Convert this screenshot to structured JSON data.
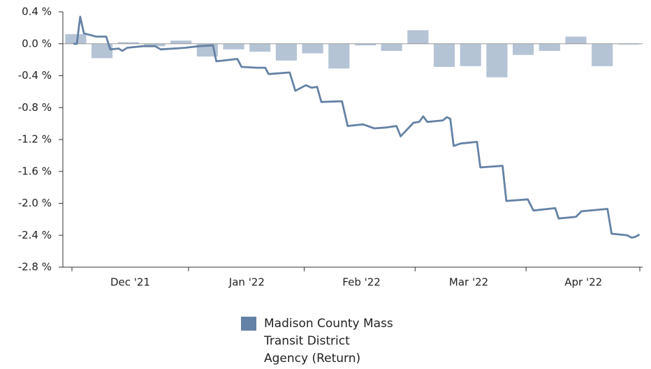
{
  "chart_data": {
    "type": "combo",
    "xlim": [
      0,
      151
    ],
    "xticks": [
      {
        "value": 15.5,
        "label": "Dec '21"
      },
      {
        "value": 46.5,
        "label": "Jan '22"
      },
      {
        "value": 77,
        "label": "Feb '22"
      },
      {
        "value": 105.5,
        "label": "Mar '22"
      },
      {
        "value": 136,
        "label": "Apr '22"
      }
    ],
    "ylim": [
      -2.8,
      0.4
    ],
    "yticks": [
      {
        "value": 0.4,
        "label": "0.4 %"
      },
      {
        "value": 0.0,
        "label": "0.0 %"
      },
      {
        "value": -0.4,
        "label": "-0.4 %"
      },
      {
        "value": -0.8,
        "label": "-0.8 %"
      },
      {
        "value": -1.2,
        "label": "-1.2 %"
      },
      {
        "value": -1.6,
        "label": "-1.6 %"
      },
      {
        "value": -2.0,
        "label": "-2.0 %"
      },
      {
        "value": -2.4,
        "label": "-2.4 %"
      },
      {
        "value": -2.8,
        "label": "-2.8 %"
      }
    ],
    "series": [
      {
        "type": "bar",
        "color": "#b4c4d5",
        "x": [
          1,
          8,
          15,
          22,
          29,
          36,
          43,
          50,
          57,
          64,
          71,
          78,
          85,
          92,
          99,
          106,
          113,
          120,
          127,
          134,
          141,
          148
        ],
        "values": [
          0.12,
          -0.18,
          0.02,
          -0.03,
          0.04,
          -0.16,
          -0.07,
          -0.1,
          -0.21,
          -0.12,
          -0.31,
          -0.02,
          -0.09,
          0.17,
          -0.29,
          -0.28,
          -0.42,
          -0.14,
          -0.09,
          0.09,
          -0.28,
          -0.01
        ]
      },
      {
        "type": "line",
        "name": "Madison County Mass Transit District Agency (Return)",
        "color": "#6482a5",
        "x": [
          0.4,
          1.3,
          2.2,
          3.2,
          6.5,
          9.1,
          10.2,
          12.4,
          13.4,
          14.7,
          18.9,
          22.1,
          23.6,
          30.1,
          33.8,
          37.5,
          38.4,
          44.0,
          45.1,
          49.2,
          51.4,
          52.3,
          57.9,
          59.4,
          62.2,
          63.7,
          65.2,
          66.3,
          71.8,
          73.3,
          77.4,
          80.4,
          83.5,
          86.3,
          87.4,
          90.8,
          92.3,
          93.4,
          94.5,
          98.6,
          99.7,
          100.6,
          101.5,
          103.4,
          107.7,
          108.6,
          114.5,
          115.5,
          121.2,
          122.7,
          128.5,
          129.4,
          134.0,
          135.5,
          142.4,
          143.5,
          147.6,
          148.9,
          149.8,
          150.9
        ],
        "values": [
          0,
          0,
          0.34,
          0.13,
          0.09,
          0.09,
          -0.07,
          -0.06,
          -0.09,
          -0.05,
          -0.03,
          -0.03,
          -0.07,
          -0.05,
          -0.03,
          -0.02,
          -0.22,
          -0.19,
          -0.29,
          -0.3,
          -0.3,
          -0.38,
          -0.36,
          -0.59,
          -0.52,
          -0.55,
          -0.54,
          -0.73,
          -0.72,
          -1.03,
          -1.01,
          -1.06,
          -1.05,
          -1.03,
          -1.16,
          -0.99,
          -0.98,
          -0.91,
          -0.98,
          -0.96,
          -0.92,
          -0.94,
          -1.28,
          -1.25,
          -1.23,
          -1.55,
          -1.53,
          -1.97,
          -1.95,
          -2.09,
          -2.06,
          -2.19,
          -2.17,
          -2.1,
          -2.07,
          -2.38,
          -2.4,
          -2.43,
          -2.42,
          -2.39
        ]
      }
    ]
  }
}
